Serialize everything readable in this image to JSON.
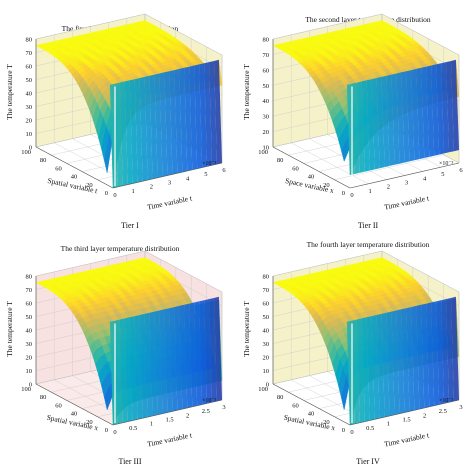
{
  "figure": {
    "panels": [
      {
        "id": "tier1",
        "title": "The first layer temperature distribution",
        "zlabel": "The temperature T",
        "depth_label": "Spatial variable t",
        "xlabel": "Time variable t",
        "exponent": "×10⁻³",
        "caption": "Tier I",
        "depth_ticks": [
          "0",
          "20",
          "40",
          "60",
          "80",
          "100"
        ],
        "x_ticks": [
          "0",
          "1",
          "2",
          "3",
          "4",
          "5",
          "6"
        ],
        "z_ticks": [
          "0",
          "10",
          "20",
          "30",
          "40",
          "50",
          "60",
          "70",
          "80"
        ],
        "wall": "#f5f2c9",
        "floor": "#ffffff"
      },
      {
        "id": "tier2",
        "title": "The second layer temperature distribution",
        "zlabel": "The temperature T",
        "depth_label": "Space variable x",
        "xlabel": "Time variable t",
        "exponent": "×10⁻³",
        "caption": "Tier II",
        "depth_ticks": [
          "0",
          "20",
          "40",
          "60",
          "80",
          "100"
        ],
        "x_ticks": [
          "0",
          "1",
          "2",
          "3",
          "4",
          "5",
          "6"
        ],
        "z_ticks": [
          "10",
          "20",
          "30",
          "40",
          "50",
          "60",
          "70",
          "80"
        ],
        "wall": "#f5f2c9",
        "floor": "#ffffff"
      },
      {
        "id": "tier3",
        "title": "The third layer temperature distribution",
        "zlabel": "The temperature T",
        "depth_label": "Spatial variable x",
        "xlabel": "Time variable t",
        "exponent": "×10⁻³",
        "caption": "Tier III",
        "depth_ticks": [
          "0",
          "20",
          "40",
          "60",
          "80",
          "100"
        ],
        "x_ticks": [
          "0",
          "0.5",
          "1",
          "1.5",
          "2",
          "2.5",
          "3"
        ],
        "z_ticks": [
          "0",
          "10",
          "20",
          "30",
          "40",
          "50",
          "60",
          "70",
          "80"
        ],
        "wall": "#f7e1e1",
        "floor": "#fbeaea"
      },
      {
        "id": "tier4",
        "title": "The fourth layer temperature distribution",
        "zlabel": "The temperature T",
        "depth_label": "Spatial variable x",
        "xlabel": "Time variable t",
        "exponent": "×10⁻³",
        "caption": "Tier IV",
        "depth_ticks": [
          "0",
          "20",
          "40",
          "60",
          "80",
          "100"
        ],
        "x_ticks": [
          "0",
          "0.5",
          "1",
          "1.5",
          "2",
          "2.5",
          "3"
        ],
        "z_ticks": [
          "0",
          "10",
          "20",
          "30",
          "40",
          "50",
          "60",
          "70",
          "80"
        ],
        "wall": "#f5f2c9",
        "floor": "#ffffff"
      }
    ]
  },
  "chart_data": [
    {
      "type": "surface",
      "title": "The first layer temperature distribution",
      "xlabel": "Time variable t",
      "ylabel": "Spatial variable t",
      "zlabel": "The temperature T",
      "xlim": [
        0,
        0.006
      ],
      "ylim": [
        0,
        100
      ],
      "zlim": [
        0,
        80
      ],
      "x_scale_note": "×10⁻³",
      "surface_samples": [
        {
          "t": 0,
          "T_near_x0": 75,
          "T_at_x100": 0
        },
        {
          "t": 0.001,
          "T_near_x0": 75,
          "T_at_x100": 2
        },
        {
          "t": 0.003,
          "T_near_x0": 75,
          "T_at_x100": 7
        },
        {
          "t": 0.006,
          "T_near_x0": 75,
          "T_at_x100": 12
        }
      ],
      "colormap": "parula"
    },
    {
      "type": "surface",
      "title": "The second layer temperature distribution",
      "xlabel": "Time variable t",
      "ylabel": "Space variable x",
      "zlabel": "The temperature T",
      "xlim": [
        0,
        0.006
      ],
      "ylim": [
        0,
        100
      ],
      "zlim": [
        10,
        80
      ],
      "x_scale_note": "×10⁻³",
      "surface_samples": [
        {
          "t": 0,
          "T_near_x0": 74,
          "T_at_x100": 10
        },
        {
          "t": 0.001,
          "T_near_x0": 74,
          "T_at_x100": 18
        },
        {
          "t": 0.003,
          "T_near_x0": 74,
          "T_at_x100": 30
        },
        {
          "t": 0.006,
          "T_near_x0": 74,
          "T_at_x100": 38
        }
      ],
      "colormap": "parula"
    },
    {
      "type": "surface",
      "title": "The third layer temperature distribution",
      "xlabel": "Time variable t",
      "ylabel": "Spatial variable x",
      "zlabel": "The temperature T",
      "xlim": [
        0,
        0.003
      ],
      "ylim": [
        0,
        100
      ],
      "zlim": [
        0,
        80
      ],
      "x_scale_note": "×10⁻³",
      "surface_samples": [
        {
          "t": 0,
          "T_near_x0": 75,
          "T_at_x100": 0
        },
        {
          "t": 0.0005,
          "T_near_x0": 75,
          "T_at_x100": 30
        },
        {
          "t": 0.0015,
          "T_near_x0": 75,
          "T_at_x100": 50
        },
        {
          "t": 0.003,
          "T_near_x0": 75,
          "T_at_x100": 62
        }
      ],
      "colormap": "parula"
    },
    {
      "type": "surface",
      "title": "The fourth layer temperature distribution",
      "xlabel": "Time variable t",
      "ylabel": "Spatial variable x",
      "zlabel": "The temperature T",
      "xlim": [
        0,
        0.003
      ],
      "ylim": [
        0,
        100
      ],
      "zlim": [
        0,
        80
      ],
      "x_scale_note": "×10⁻³",
      "surface_samples": [
        {
          "t": 0,
          "T_near_x0": 75,
          "T_at_x100": 0
        },
        {
          "t": 0.0005,
          "T_near_x0": 75,
          "T_at_x100": 25
        },
        {
          "t": 0.0015,
          "T_near_x0": 75,
          "T_at_x100": 40
        },
        {
          "t": 0.003,
          "T_near_x0": 75,
          "T_at_x100": 48
        }
      ],
      "colormap": "parula"
    }
  ]
}
